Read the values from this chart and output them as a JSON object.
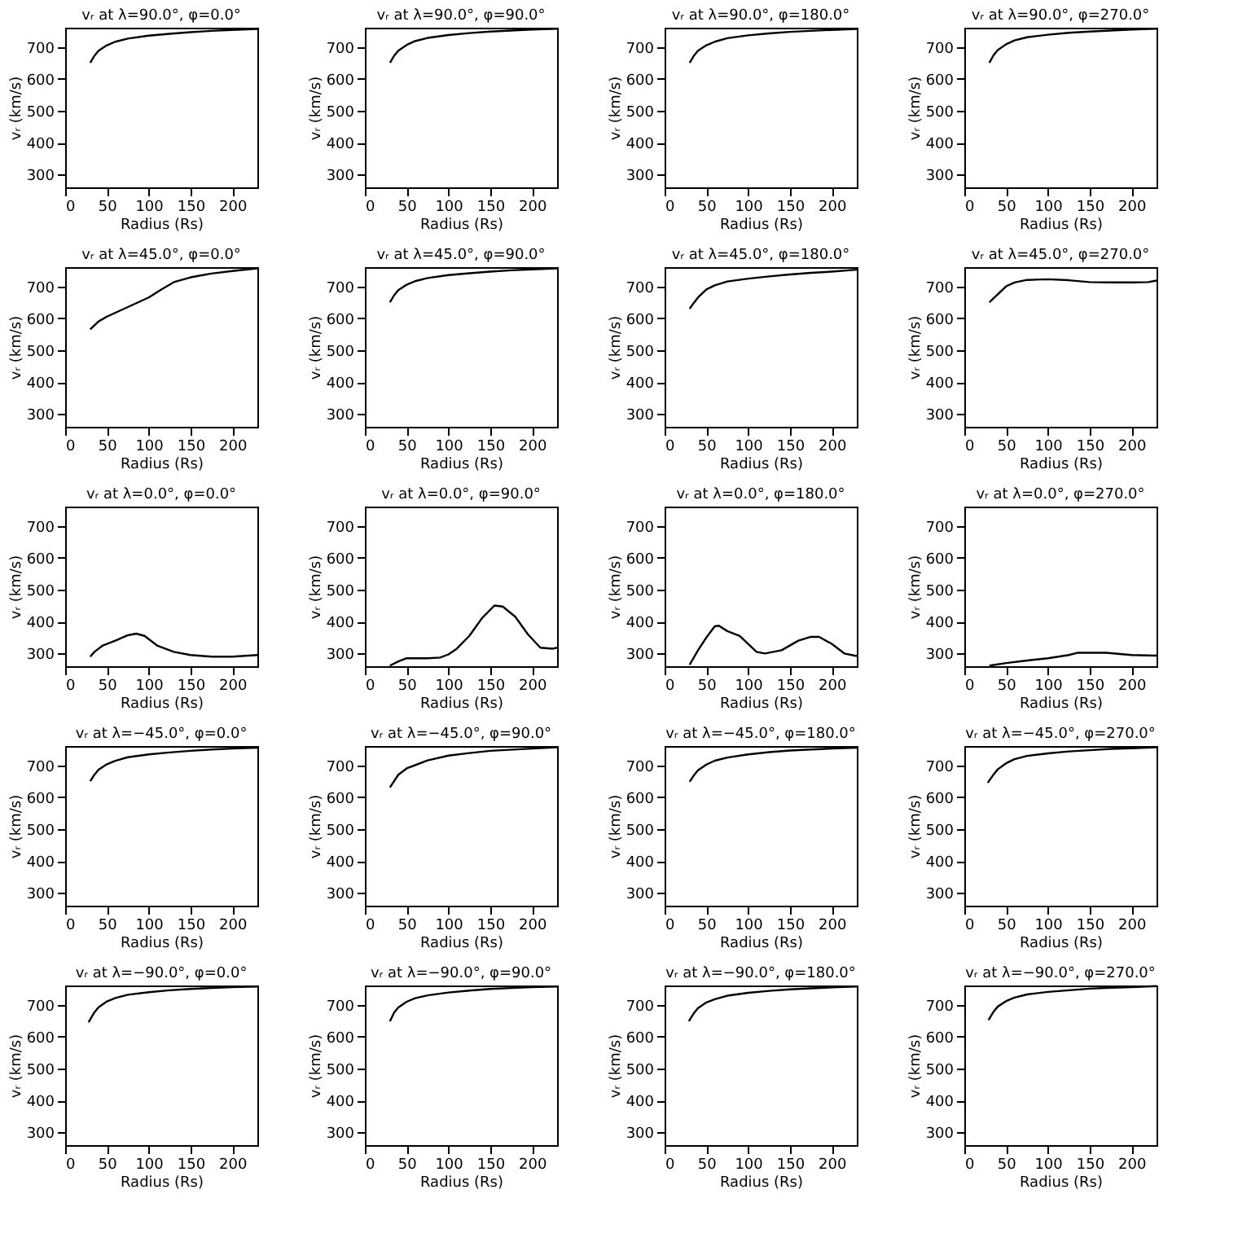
{
  "chart_data": [
    {
      "type": "line",
      "title": "vᵣ at λ=90.0°, φ=0.0°",
      "xlabel": "Radius (Rs)",
      "ylabel": "vᵣ (km/s)",
      "xlim": [
        0,
        230
      ],
      "ylim": [
        260,
        760
      ],
      "xticks": [
        0,
        50,
        100,
        150,
        200
      ],
      "yticks": [
        300,
        400,
        500,
        600,
        700
      ],
      "color": "#000000",
      "x": [
        30,
        35,
        40,
        50,
        60,
        75,
        100,
        125,
        150,
        175,
        200,
        230
      ],
      "values": [
        650,
        672,
        688,
        705,
        716,
        726,
        735,
        741,
        746,
        750,
        753,
        756
      ]
    },
    {
      "type": "line",
      "title": "vᵣ at λ=90.0°, φ=90.0°",
      "xlabel": "Radius (Rs)",
      "ylabel": "vᵣ (km/s)",
      "xlim": [
        0,
        230
      ],
      "ylim": [
        260,
        760
      ],
      "xticks": [
        0,
        50,
        100,
        150,
        200
      ],
      "yticks": [
        300,
        400,
        500,
        600,
        700
      ],
      "color": "#000000",
      "x": [
        30,
        35,
        40,
        50,
        60,
        75,
        100,
        125,
        150,
        175,
        200,
        230
      ],
      "values": [
        650,
        672,
        688,
        706,
        718,
        728,
        737,
        743,
        748,
        751,
        754,
        757
      ]
    },
    {
      "type": "line",
      "title": "vᵣ at λ=90.0°, φ=180.0°",
      "xlabel": "Radius (Rs)",
      "ylabel": "vᵣ (km/s)",
      "xlim": [
        0,
        230
      ],
      "ylim": [
        260,
        760
      ],
      "xticks": [
        0,
        50,
        100,
        150,
        200
      ],
      "yticks": [
        300,
        400,
        500,
        600,
        700
      ],
      "color": "#000000",
      "x": [
        30,
        35,
        40,
        50,
        60,
        75,
        100,
        125,
        150,
        175,
        200,
        230
      ],
      "values": [
        650,
        672,
        688,
        705,
        716,
        727,
        736,
        742,
        747,
        750,
        753,
        756
      ]
    },
    {
      "type": "line",
      "title": "vᵣ at λ=90.0°, φ=270.0°",
      "xlabel": "Radius (Rs)",
      "ylabel": "vᵣ (km/s)",
      "xlim": [
        0,
        230
      ],
      "ylim": [
        260,
        760
      ],
      "xticks": [
        0,
        50,
        100,
        150,
        200
      ],
      "yticks": [
        300,
        400,
        500,
        600,
        700
      ],
      "color": "#000000",
      "x": [
        30,
        35,
        40,
        50,
        60,
        75,
        100,
        125,
        150,
        175,
        200,
        230
      ],
      "values": [
        650,
        674,
        690,
        708,
        720,
        730,
        738,
        744,
        748,
        751,
        754,
        757
      ]
    },
    {
      "type": "line",
      "title": "vᵣ at λ=45.0°, φ=0.0°",
      "xlabel": "Radius (Rs)",
      "ylabel": "vᵣ (km/s)",
      "xlim": [
        0,
        230
      ],
      "ylim": [
        260,
        760
      ],
      "xticks": [
        0,
        50,
        100,
        150,
        200
      ],
      "yticks": [
        300,
        400,
        500,
        600,
        700
      ],
      "color": "#000000",
      "x": [
        30,
        40,
        50,
        75,
        100,
        115,
        130,
        150,
        175,
        200,
        230
      ],
      "values": [
        565,
        590,
        605,
        635,
        665,
        690,
        713,
        728,
        740,
        748,
        756
      ]
    },
    {
      "type": "line",
      "title": "vᵣ at λ=45.0°, φ=90.0°",
      "xlabel": "Radius (Rs)",
      "ylabel": "vᵣ (km/s)",
      "xlim": [
        0,
        230
      ],
      "ylim": [
        260,
        760
      ],
      "xticks": [
        0,
        50,
        100,
        150,
        200
      ],
      "yticks": [
        300,
        400,
        500,
        600,
        700
      ],
      "color": "#000000",
      "x": [
        30,
        35,
        40,
        50,
        60,
        75,
        100,
        125,
        150,
        175,
        200,
        230
      ],
      "values": [
        650,
        672,
        688,
        705,
        716,
        726,
        735,
        741,
        746,
        750,
        753,
        756
      ]
    },
    {
      "type": "line",
      "title": "vᵣ at λ=45.0°, φ=180.0°",
      "xlabel": "Radius (Rs)",
      "ylabel": "vᵣ (km/s)",
      "xlim": [
        0,
        230
      ],
      "ylim": [
        260,
        760
      ],
      "xticks": [
        0,
        50,
        100,
        150,
        200
      ],
      "yticks": [
        300,
        400,
        500,
        600,
        700
      ],
      "color": "#000000",
      "x": [
        30,
        35,
        40,
        50,
        60,
        75,
        100,
        125,
        150,
        175,
        200,
        230
      ],
      "values": [
        630,
        648,
        665,
        690,
        703,
        715,
        724,
        731,
        737,
        742,
        746,
        752
      ]
    },
    {
      "type": "line",
      "title": "vᵣ at λ=45.0°, φ=270.0°",
      "xlabel": "Radius (Rs)",
      "ylabel": "vᵣ (km/s)",
      "xlim": [
        0,
        230
      ],
      "ylim": [
        260,
        760
      ],
      "xticks": [
        0,
        50,
        100,
        150,
        200
      ],
      "yticks": [
        300,
        400,
        500,
        600,
        700
      ],
      "color": "#000000",
      "x": [
        30,
        40,
        50,
        60,
        75,
        100,
        125,
        150,
        175,
        200,
        220,
        230
      ],
      "values": [
        650,
        675,
        700,
        712,
        720,
        722,
        719,
        713,
        712,
        712,
        713,
        718
      ]
    },
    {
      "type": "line",
      "title": "vᵣ at λ=0.0°, φ=0.0°",
      "xlabel": "Radius (Rs)",
      "ylabel": "vᵣ (km/s)",
      "xlim": [
        0,
        230
      ],
      "ylim": [
        260,
        760
      ],
      "xticks": [
        0,
        50,
        100,
        150,
        200
      ],
      "yticks": [
        300,
        400,
        500,
        600,
        700
      ],
      "color": "#000000",
      "x": [
        30,
        35,
        45,
        60,
        75,
        85,
        95,
        110,
        130,
        150,
        175,
        200,
        230
      ],
      "values": [
        290,
        305,
        325,
        340,
        357,
        362,
        355,
        325,
        305,
        295,
        290,
        290,
        295
      ]
    },
    {
      "type": "line",
      "title": "vᵣ at λ=0.0°, φ=90.0°",
      "xlabel": "Radius (Rs)",
      "ylabel": "vᵣ (km/s)",
      "xlim": [
        0,
        230
      ],
      "ylim": [
        260,
        760
      ],
      "xticks": [
        0,
        50,
        100,
        150,
        200
      ],
      "yticks": [
        300,
        400,
        500,
        600,
        700
      ],
      "color": "#000000",
      "x": [
        30,
        40,
        50,
        75,
        90,
        100,
        110,
        125,
        140,
        155,
        165,
        180,
        195,
        210,
        225,
        230
      ],
      "values": [
        262,
        275,
        285,
        285,
        287,
        297,
        315,
        355,
        410,
        450,
        447,
        415,
        360,
        318,
        315,
        318
      ]
    },
    {
      "type": "line",
      "title": "vᵣ at λ=0.0°, φ=180.0°",
      "xlabel": "Radius (Rs)",
      "ylabel": "vᵣ (km/s)",
      "xlim": [
        0,
        230
      ],
      "ylim": [
        260,
        760
      ],
      "xticks": [
        0,
        50,
        100,
        150,
        200
      ],
      "yticks": [
        300,
        400,
        500,
        600,
        700
      ],
      "color": "#000000",
      "x": [
        30,
        40,
        50,
        60,
        65,
        75,
        90,
        100,
        110,
        120,
        140,
        160,
        175,
        185,
        200,
        215,
        230
      ],
      "values": [
        265,
        310,
        350,
        385,
        387,
        370,
        355,
        330,
        305,
        300,
        310,
        340,
        352,
        352,
        330,
        300,
        292
      ]
    },
    {
      "type": "line",
      "title": "vᵣ at λ=0.0°, φ=270.0°",
      "xlabel": "Radius (Rs)",
      "ylabel": "vᵣ (km/s)",
      "xlim": [
        0,
        230
      ],
      "ylim": [
        260,
        760
      ],
      "xticks": [
        0,
        50,
        100,
        150,
        200
      ],
      "yticks": [
        300,
        400,
        500,
        600,
        700
      ],
      "color": "#000000",
      "x": [
        30,
        50,
        75,
        100,
        125,
        135,
        170,
        200,
        230
      ],
      "values": [
        262,
        270,
        278,
        285,
        295,
        302,
        302,
        295,
        293
      ]
    },
    {
      "type": "line",
      "title": "vᵣ at λ=−45.0°, φ=0.0°",
      "xlabel": "Radius (Rs)",
      "ylabel": "vᵣ (km/s)",
      "xlim": [
        0,
        230
      ],
      "ylim": [
        260,
        760
      ],
      "xticks": [
        0,
        50,
        100,
        150,
        200
      ],
      "yticks": [
        300,
        400,
        500,
        600,
        700
      ],
      "color": "#000000",
      "x": [
        30,
        35,
        40,
        50,
        60,
        75,
        100,
        125,
        150,
        175,
        200,
        230
      ],
      "values": [
        650,
        670,
        686,
        703,
        714,
        725,
        734,
        740,
        745,
        749,
        752,
        755
      ]
    },
    {
      "type": "line",
      "title": "vᵣ at λ=−45.0°, φ=90.0°",
      "xlabel": "Radius (Rs)",
      "ylabel": "vᵣ (km/s)",
      "xlim": [
        0,
        230
      ],
      "ylim": [
        260,
        760
      ],
      "xticks": [
        0,
        50,
        100,
        150,
        200
      ],
      "yticks": [
        300,
        400,
        500,
        600,
        700
      ],
      "color": "#000000",
      "x": [
        30,
        40,
        50,
        75,
        100,
        125,
        150,
        200,
        230
      ],
      "values": [
        630,
        670,
        690,
        715,
        730,
        738,
        745,
        752,
        756
      ]
    },
    {
      "type": "line",
      "title": "vᵣ at λ=−45.0°, φ=180.0°",
      "xlabel": "Radius (Rs)",
      "ylabel": "vᵣ (km/s)",
      "xlim": [
        0,
        230
      ],
      "ylim": [
        260,
        760
      ],
      "xticks": [
        0,
        50,
        100,
        150,
        200
      ],
      "yticks": [
        300,
        400,
        500,
        600,
        700
      ],
      "color": "#000000",
      "x": [
        30,
        35,
        40,
        50,
        60,
        75,
        100,
        125,
        150,
        175,
        200,
        230
      ],
      "values": [
        648,
        668,
        684,
        702,
        714,
        724,
        734,
        741,
        746,
        749,
        752,
        755
      ]
    },
    {
      "type": "line",
      "title": "vᵣ at λ=−45.0°, φ=270.0°",
      "xlabel": "Radius (Rs)",
      "ylabel": "vᵣ (km/s)",
      "xlim": [
        0,
        230
      ],
      "ylim": [
        260,
        760
      ],
      "xticks": [
        0,
        50,
        100,
        150,
        200
      ],
      "yticks": [
        300,
        400,
        500,
        600,
        700
      ],
      "color": "#000000",
      "x": [
        28,
        35,
        40,
        50,
        60,
        75,
        100,
        125,
        150,
        175,
        200,
        230
      ],
      "values": [
        645,
        671,
        687,
        706,
        719,
        729,
        737,
        743,
        747,
        751,
        753,
        756
      ]
    },
    {
      "type": "line",
      "title": "vᵣ at λ=−90.0°, φ=0.0°",
      "xlabel": "Radius (Rs)",
      "ylabel": "vᵣ (km/s)",
      "xlim": [
        0,
        230
      ],
      "ylim": [
        260,
        760
      ],
      "xticks": [
        0,
        50,
        100,
        150,
        200
      ],
      "yticks": [
        300,
        400,
        500,
        600,
        700
      ],
      "color": "#000000",
      "x": [
        28,
        35,
        40,
        50,
        60,
        75,
        100,
        125,
        150,
        175,
        200,
        230
      ],
      "values": [
        645,
        676,
        692,
        710,
        721,
        731,
        739,
        745,
        749,
        752,
        755,
        757
      ]
    },
    {
      "type": "line",
      "title": "vᵣ at λ=−90.0°, φ=90.0°",
      "xlabel": "Radius (Rs)",
      "ylabel": "vᵣ (km/s)",
      "xlim": [
        0,
        230
      ],
      "ylim": [
        260,
        760
      ],
      "xticks": [
        0,
        50,
        100,
        150,
        200
      ],
      "yticks": [
        300,
        400,
        500,
        600,
        700
      ],
      "color": "#000000",
      "x": [
        30,
        35,
        40,
        50,
        60,
        75,
        100,
        125,
        150,
        175,
        200,
        230
      ],
      "values": [
        648,
        675,
        691,
        709,
        720,
        729,
        738,
        744,
        749,
        752,
        755,
        757
      ]
    },
    {
      "type": "line",
      "title": "vᵣ at λ=−90.0°, φ=180.0°",
      "xlabel": "Radius (Rs)",
      "ylabel": "vᵣ (km/s)",
      "xlim": [
        0,
        230
      ],
      "ylim": [
        260,
        760
      ],
      "xticks": [
        0,
        50,
        100,
        150,
        200
      ],
      "yticks": [
        300,
        400,
        500,
        600,
        700
      ],
      "color": "#000000",
      "x": [
        29,
        35,
        40,
        50,
        60,
        75,
        100,
        125,
        150,
        175,
        200,
        230
      ],
      "values": [
        648,
        673,
        689,
        707,
        717,
        728,
        737,
        743,
        748,
        751,
        754,
        757
      ]
    },
    {
      "type": "line",
      "title": "vᵣ at λ=−90.0°, φ=270.0°",
      "xlabel": "Radius (Rs)",
      "ylabel": "vᵣ (km/s)",
      "xlim": [
        0,
        230
      ],
      "ylim": [
        260,
        760
      ],
      "xticks": [
        0,
        50,
        100,
        150,
        200
      ],
      "yticks": [
        300,
        400,
        500,
        600,
        700
      ],
      "color": "#000000",
      "x": [
        29,
        35,
        40,
        50,
        60,
        75,
        100,
        125,
        150,
        175,
        200,
        230
      ],
      "values": [
        652,
        678,
        694,
        711,
        722,
        732,
        740,
        745,
        750,
        753,
        755,
        758
      ]
    }
  ]
}
